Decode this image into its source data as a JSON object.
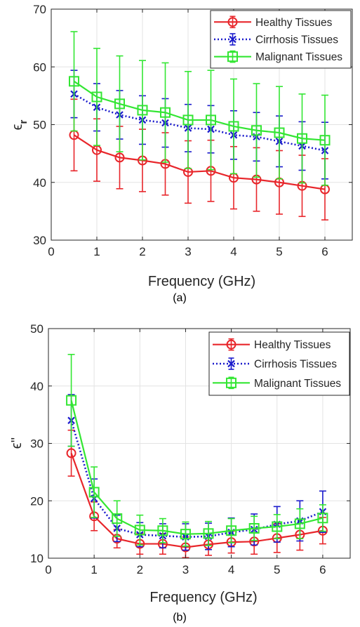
{
  "chart_data": [
    {
      "type": "line",
      "panel_caption": "(a)",
      "xlabel": "Frequency (GHz)",
      "ylabel": "ϵ",
      "ylabel_subscript": "r",
      "xlim": [
        0,
        6.6
      ],
      "ylim": [
        30,
        70
      ],
      "xticks": [
        0,
        1,
        2,
        3,
        4,
        5,
        6
      ],
      "yticks": [
        30,
        40,
        50,
        60,
        70
      ],
      "grid": true,
      "legend_position": "top-right",
      "x": [
        0.5,
        1.0,
        1.5,
        2.0,
        2.5,
        3.0,
        3.5,
        4.0,
        4.5,
        5.0,
        5.5,
        6.0
      ],
      "series": [
        {
          "name": "Healthy Tissues",
          "color": "#e8262b",
          "marker": "circle",
          "line_style": "solid",
          "values": [
            48.2,
            45.6,
            44.3,
            43.8,
            43.2,
            41.8,
            42.0,
            40.8,
            40.5,
            40.0,
            39.4,
            38.8
          ],
          "errors": [
            6.2,
            5.4,
            5.4,
            5.4,
            5.4,
            5.4,
            5.3,
            5.4,
            5.5,
            5.5,
            5.3,
            5.3
          ]
        },
        {
          "name": "Cirrhosis Tissues",
          "color": "#1a1acc",
          "marker": "x",
          "line_style": "dotted",
          "values": [
            55.3,
            53.0,
            51.7,
            50.8,
            50.3,
            49.4,
            49.2,
            48.2,
            47.9,
            47.1,
            46.3,
            45.5
          ],
          "errors": [
            4.1,
            4.1,
            4.2,
            4.2,
            4.2,
            4.1,
            4.1,
            4.2,
            4.2,
            4.4,
            4.2,
            4.9
          ]
        },
        {
          "name": "Malignant Tissues",
          "color": "#33e633",
          "marker": "square",
          "line_style": "solid",
          "values": [
            57.5,
            54.8,
            53.6,
            52.5,
            52.1,
            50.8,
            50.8,
            49.7,
            49.0,
            48.6,
            47.6,
            47.3
          ],
          "errors": [
            8.6,
            8.4,
            8.3,
            8.6,
            8.6,
            8.4,
            8.6,
            8.2,
            8.1,
            8.0,
            7.7,
            7.8
          ]
        }
      ]
    },
    {
      "type": "line",
      "panel_caption": "(b)",
      "xlabel": "Frequency (GHz)",
      "ylabel": "ϵ''",
      "xlim": [
        0,
        6.6
      ],
      "ylim": [
        10,
        50
      ],
      "xticks": [
        0,
        1,
        2,
        3,
        4,
        5,
        6
      ],
      "yticks": [
        10,
        20,
        30,
        40,
        50
      ],
      "grid": true,
      "legend_position": "top-right",
      "x": [
        0.5,
        1.0,
        1.5,
        2.0,
        2.5,
        3.0,
        3.5,
        4.0,
        4.5,
        5.0,
        5.5,
        6.0
      ],
      "series": [
        {
          "name": "Healthy Tissues",
          "color": "#e8262b",
          "marker": "circle",
          "line_style": "solid",
          "values": [
            28.3,
            17.3,
            13.4,
            12.5,
            12.5,
            11.9,
            12.4,
            12.8,
            12.9,
            13.5,
            14.1,
            14.8
          ],
          "errors": [
            4.0,
            2.5,
            1.6,
            1.8,
            1.8,
            1.8,
            1.9,
            1.9,
            2.2,
            2.5,
            2.7,
            2.3
          ]
        },
        {
          "name": "Cirrhosis Tissues",
          "color": "#1a1acc",
          "marker": "x",
          "line_style": "dotted",
          "values": [
            34.0,
            20.4,
            15.2,
            14.1,
            13.9,
            13.7,
            13.8,
            14.5,
            15.0,
            15.9,
            16.5,
            18.1
          ],
          "errors": [
            4.5,
            3.4,
            2.3,
            2.1,
            2.1,
            2.3,
            2.3,
            2.5,
            2.7,
            3.1,
            3.5,
            3.6
          ]
        },
        {
          "name": "Malignant Tissues",
          "color": "#33e633",
          "marker": "square",
          "line_style": "solid",
          "values": [
            37.5,
            21.5,
            16.9,
            14.9,
            14.8,
            14.2,
            14.3,
            14.8,
            15.2,
            15.5,
            16.0,
            17.0
          ],
          "errors": [
            8.0,
            4.4,
            3.1,
            2.6,
            2.1,
            2.1,
            2.1,
            2.1,
            2.1,
            2.1,
            2.6,
            2.3
          ]
        }
      ]
    }
  ]
}
